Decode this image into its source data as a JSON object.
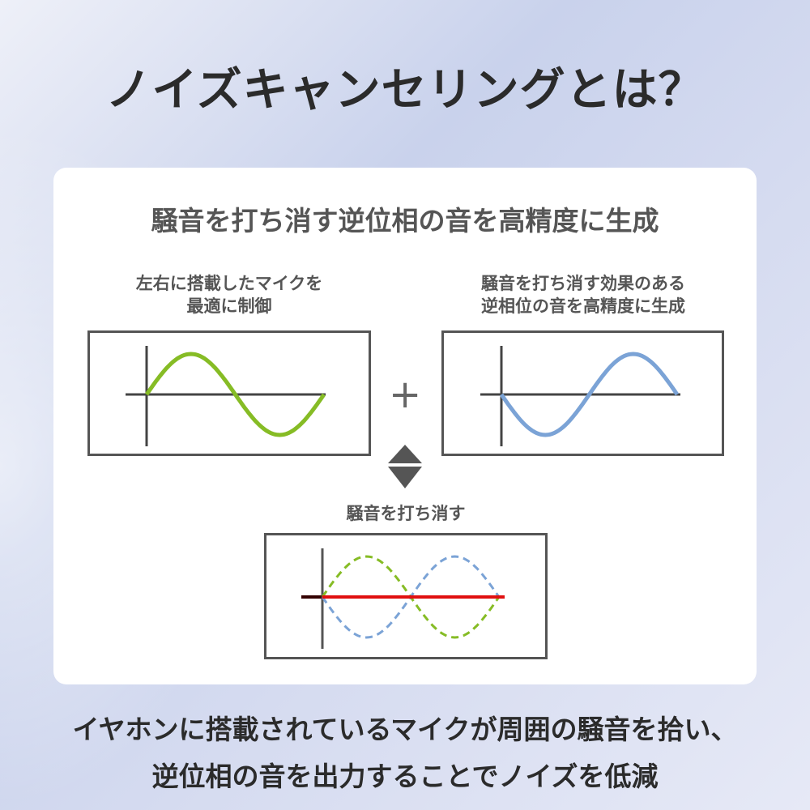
{
  "title": "ノイズキャンセリングとは？",
  "card": {
    "subtitle": "騒音を打ち消す逆位相の音を高精度に生成",
    "left_label": [
      "左右に搭載したマイクを",
      "最適に制御"
    ],
    "right_label": [
      "騒音を打ち消す効果のある",
      "逆相位の音を高精度に生成"
    ],
    "plus_symbol": "+",
    "result_label": "騒音を打ち消す"
  },
  "footer": {
    "line1": "イヤホンに搭載されているマイクが周囲の騒音を拾い、",
    "line2": "逆位相の音を出力することでノイズを低減"
  },
  "colors": {
    "noise_wave": "#86bc25",
    "anti_wave": "#7ba3d6",
    "result_line": "#e01010",
    "axis": "#444444"
  }
}
